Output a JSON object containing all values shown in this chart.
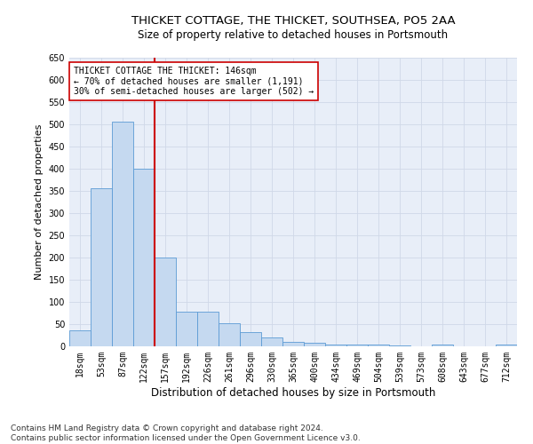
{
  "title": "THICKET COTTAGE, THE THICKET, SOUTHSEA, PO5 2AA",
  "subtitle": "Size of property relative to detached houses in Portsmouth",
  "xlabel": "Distribution of detached houses by size in Portsmouth",
  "ylabel": "Number of detached properties",
  "categories": [
    "18sqm",
    "53sqm",
    "87sqm",
    "122sqm",
    "157sqm",
    "192sqm",
    "226sqm",
    "261sqm",
    "296sqm",
    "330sqm",
    "365sqm",
    "400sqm",
    "434sqm",
    "469sqm",
    "504sqm",
    "539sqm",
    "573sqm",
    "608sqm",
    "643sqm",
    "677sqm",
    "712sqm"
  ],
  "values": [
    37,
    357,
    507,
    400,
    200,
    78,
    78,
    52,
    33,
    20,
    11,
    9,
    5,
    5,
    4,
    3,
    0,
    5,
    0,
    0,
    5
  ],
  "bar_color": "#c5d9f0",
  "bar_edge_color": "#5b9bd5",
  "vline_color": "#cc0000",
  "annotation_text": "THICKET COTTAGE THE THICKET: 146sqm\n← 70% of detached houses are smaller (1,191)\n30% of semi-detached houses are larger (502) →",
  "annotation_box_color": "#ffffff",
  "annotation_box_edge": "#cc0000",
  "ylim": [
    0,
    650
  ],
  "yticks": [
    0,
    50,
    100,
    150,
    200,
    250,
    300,
    350,
    400,
    450,
    500,
    550,
    600,
    650
  ],
  "grid_color": "#d0d8e8",
  "background_color": "#e8eef8",
  "footer": "Contains HM Land Registry data © Crown copyright and database right 2024.\nContains public sector information licensed under the Open Government Licence v3.0.",
  "title_fontsize": 9.5,
  "subtitle_fontsize": 8.5,
  "xlabel_fontsize": 8.5,
  "ylabel_fontsize": 8,
  "tick_fontsize": 7,
  "annotation_fontsize": 7,
  "footer_fontsize": 6.5
}
